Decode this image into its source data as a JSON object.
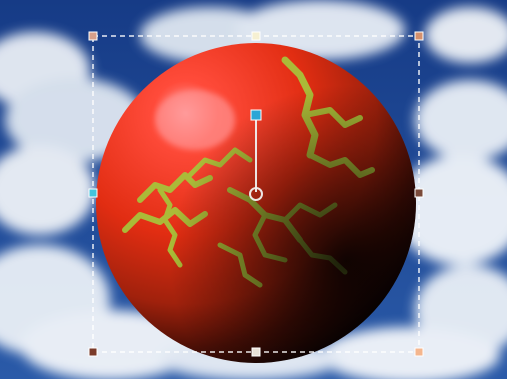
{
  "canvas": {
    "content": "textured-sphere-over-cloudy-sky",
    "sky_color": "#1b3f86",
    "cloud_color": "#e9eef5",
    "sphere_base_color": "#e12d12",
    "sphere_highlight_color": "#ff8a8a",
    "texture_color": "#a8c23a",
    "selection_line_color": "#ffffff",
    "handle_colors": {
      "corner_top_left": "#d8a08a",
      "corner_top_right": "#d4906d",
      "corner_bottom_left": "#7a3a2a",
      "corner_bottom_right": "#f4b68e",
      "edge_top": "#f6f0d2",
      "edge_bottom": "#e8e2d8",
      "edge_left": "#43c4dc",
      "edge_right": "#7a4a3a",
      "rotation_point": "#2aa6d6"
    }
  },
  "tools": {
    "selection": "dashed-bounding-box",
    "handles": [
      "resize-handle-top-left",
      "resize-handle-top",
      "resize-handle-top-right",
      "resize-handle-left",
      "resize-handle-right",
      "resize-handle-bottom-left",
      "resize-handle-bottom",
      "resize-handle-bottom-right"
    ],
    "rotation": "rotation-handle-with-pivot"
  }
}
